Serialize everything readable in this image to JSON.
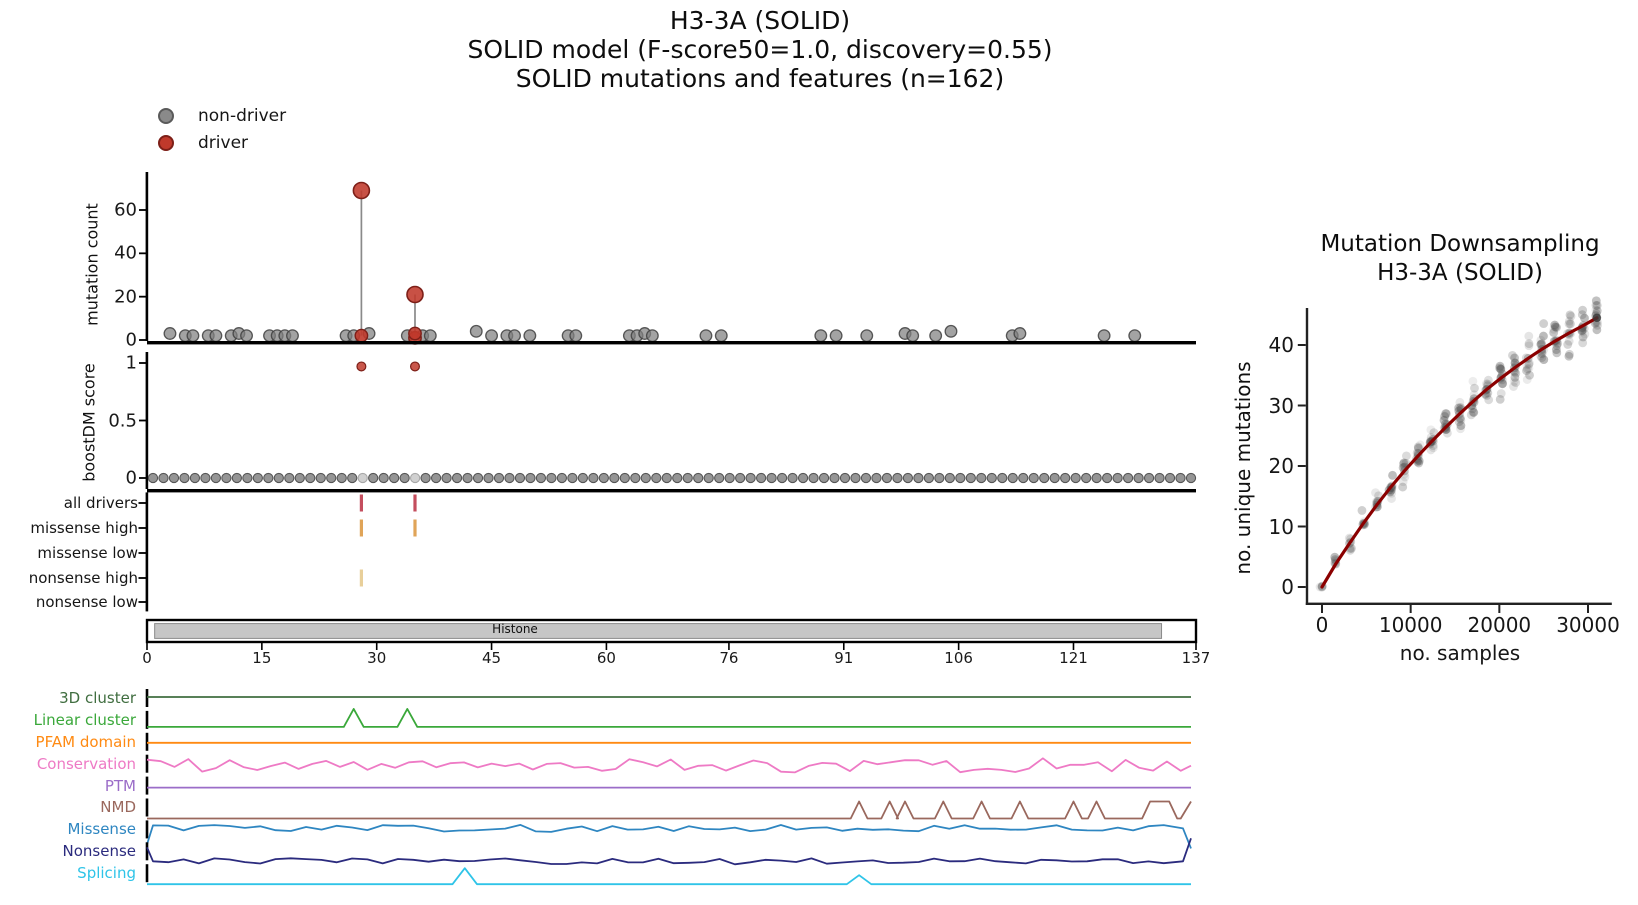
{
  "header": {
    "line1": "H3-3A (SOLID)",
    "line2": "SOLID model (F-score50=1.0, discovery=0.55)",
    "line3": "SOLID mutations and features (n=162)"
  },
  "legend": {
    "items": [
      {
        "label": "non-driver",
        "color": "#8a8a8a",
        "edge": "#5a5a5a"
      },
      {
        "label": "driver",
        "color": "#c0392b",
        "edge": "#7d1f18"
      }
    ]
  },
  "chart_data": [
    {
      "id": "mutation_needle",
      "type": "scatter",
      "ylabel": "mutation count",
      "yticks": [
        0,
        20,
        40,
        60
      ],
      "ylim": [
        0,
        75
      ],
      "xlim": [
        0,
        137
      ],
      "drivers": [
        {
          "pos": 28,
          "count": 69,
          "base_counts": [
            2
          ]
        },
        {
          "pos": 35,
          "count": 21,
          "base_counts": [
            1,
            3
          ]
        }
      ],
      "non_drivers": {
        "positions": [
          3,
          5,
          6,
          8,
          9,
          11,
          12,
          13,
          16,
          17,
          18,
          19,
          26,
          27,
          29,
          34,
          36,
          37,
          43,
          45,
          47,
          48,
          50,
          55,
          56,
          63,
          64,
          65,
          66,
          73,
          75,
          88,
          90,
          94,
          99,
          100,
          103,
          105,
          113,
          114,
          125,
          129
        ],
        "counts": [
          3,
          2,
          2,
          2,
          2,
          2,
          3,
          2,
          2,
          2,
          2,
          2,
          2,
          2,
          3,
          2,
          2,
          2,
          4,
          2,
          2,
          2,
          2,
          2,
          2,
          2,
          2,
          3,
          2,
          2,
          2,
          2,
          2,
          2,
          3,
          2,
          2,
          4,
          2,
          3,
          2,
          2
        ]
      },
      "colors": {
        "non_driver": "#7f7f7f",
        "non_driver_edge": "#3f3f3f",
        "driver": "#c0392b",
        "driver_edge": "#7d1f18",
        "stem": "#8a8a8a"
      }
    },
    {
      "id": "boostdm_score",
      "type": "scatter",
      "ylabel": "boostDM score",
      "yticks": [
        0,
        0.5,
        1
      ],
      "drivers": [
        {
          "pos": 28,
          "score": 0.97
        },
        {
          "pos": 35,
          "score": 0.97
        }
      ],
      "zero_row": {
        "dot_count": 100,
        "score": 0,
        "light_at_driver_positions": true
      }
    },
    {
      "id": "driver_tracks",
      "type": "ticks",
      "rows": [
        {
          "label": "all drivers",
          "positions": [
            28,
            35
          ],
          "color": "#c44e5e"
        },
        {
          "label": "missense high",
          "positions": [
            28,
            35
          ],
          "color": "#e0a458"
        },
        {
          "label": "missense low",
          "positions": [],
          "color": "#e0a458"
        },
        {
          "label": "nonsense high",
          "positions": [
            28
          ],
          "color": "#e8cf9a"
        },
        {
          "label": "nonsense low",
          "positions": [],
          "color": "#e8cf9a"
        }
      ]
    },
    {
      "id": "protein_domain",
      "type": "bar",
      "label": "Histone",
      "start": 1,
      "end": 132.5,
      "fill": "#c6c6c6",
      "xticks": [
        0,
        15,
        30,
        45,
        60,
        76,
        91,
        106,
        121,
        137
      ],
      "xmax": 137
    },
    {
      "id": "feature_tracks",
      "type": "line",
      "series": [
        {
          "name": "3D cluster",
          "color": "#406e40",
          "shape": "flat"
        },
        {
          "name": "Linear cluster",
          "color": "#3aa83a",
          "shape": "peaks",
          "peaks": [
            [
              27,
              18
            ],
            [
              34,
              18
            ]
          ],
          "peak_halfwidth": 1.3
        },
        {
          "name": "PFAM domain",
          "color": "#ff8a12",
          "shape": "flat"
        },
        {
          "name": "Conservation",
          "color": "#ee7ac5",
          "shape": "noisy",
          "amplitude": 14,
          "step": 1.8
        },
        {
          "name": "PTM",
          "color": "#9b6dc8",
          "shape": "flat"
        },
        {
          "name": "NMD",
          "color": "#9a685d",
          "shape": "peaks",
          "peaks": [
            [
              93,
              17
            ],
            [
              97,
              17
            ],
            [
              99,
              17
            ],
            [
              104,
              17
            ],
            [
              109,
              17
            ],
            [
              114,
              17
            ],
            [
              121,
              17
            ],
            [
              124,
              17
            ]
          ],
          "plateaus": [
            [
              131,
              133.5,
              17
            ]
          ],
          "end_rise": 17,
          "peak_halfwidth": 1.1
        },
        {
          "name": "Missense",
          "color": "#2e86c1",
          "shape": "noisy",
          "amplitude": 7,
          "step": 2,
          "start_dy": 16,
          "end_dy": 20
        },
        {
          "name": "Nonsense",
          "color": "#2b2b7e",
          "shape": "noisy",
          "amplitude": 6,
          "step": 2,
          "start_dy": -14,
          "end_dy": -23
        },
        {
          "name": "Splicing",
          "color": "#2fc4e8",
          "shape": "peaks",
          "peaks": [
            [
              41.5,
              16
            ],
            [
              93,
              9
            ]
          ],
          "peak_halfwidth": 1.6
        }
      ]
    },
    {
      "id": "downsampling",
      "type": "scatter",
      "title": "Mutation Downsampling",
      "subtitle": "H3-3A (SOLID)",
      "xlabel": "no. samples",
      "ylabel": "no. unique mutations",
      "xticks": [
        0,
        10000,
        20000,
        30000
      ],
      "yticks": [
        0,
        10,
        20,
        30,
        40
      ],
      "xlim": [
        0,
        32500
      ],
      "ylim": [
        -1.5,
        47
      ],
      "trend": {
        "color": "#8b0000",
        "x": [
          0,
          1550,
          3100,
          4650,
          6200,
          7750,
          9300,
          10850,
          12400,
          13950,
          15500,
          17050,
          18600,
          20150,
          21700,
          23250,
          24800,
          26350,
          27900,
          29450,
          31000
        ],
        "y": [
          0,
          3.8,
          7.2,
          10.5,
          13.6,
          16.5,
          19.2,
          21.7,
          24.1,
          26.4,
          28.6,
          30.7,
          32.7,
          34.5,
          36.2,
          37.8,
          39.3,
          40.7,
          42.0,
          43.2,
          44.5
        ]
      },
      "scatter": {
        "color": "#4a4a4a",
        "x_step": 1550,
        "columns": 21,
        "max_dots_per_column": 12,
        "spread": 4.5
      }
    }
  ]
}
